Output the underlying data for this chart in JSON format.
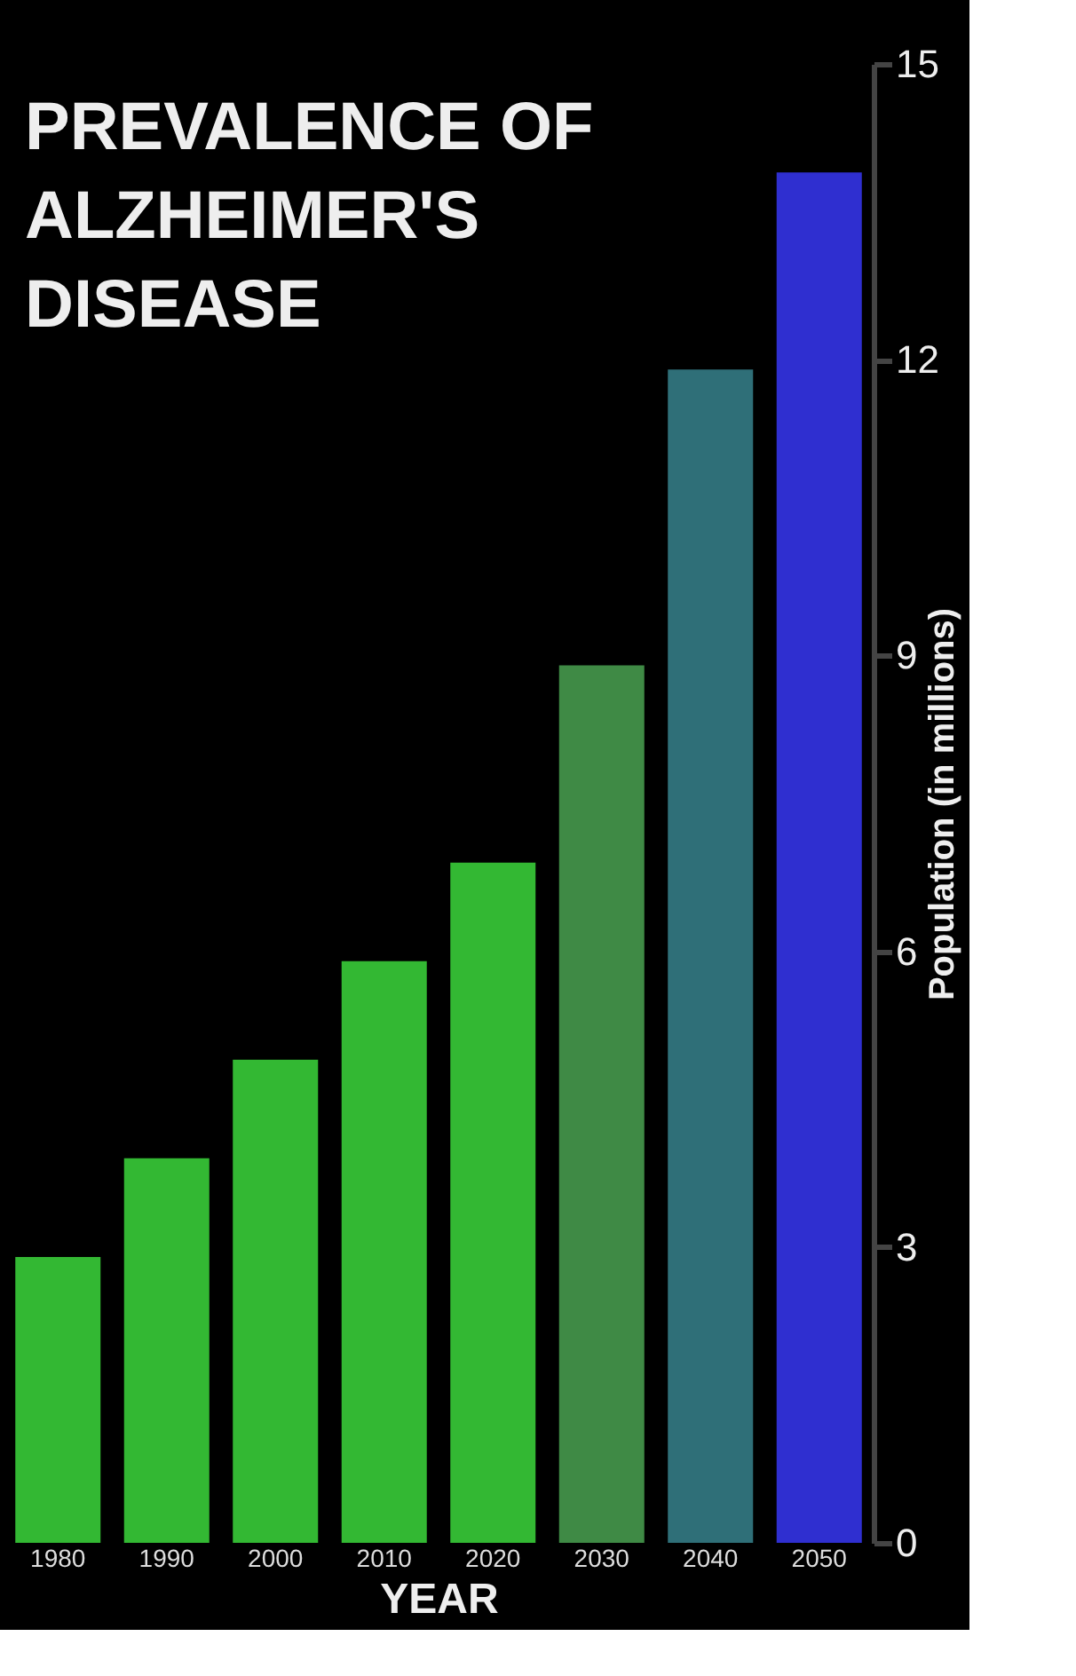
{
  "chart_data": {
    "type": "bar",
    "title": "PREVALENCE OF\nALZHEIMER'S\nDISEASE",
    "xlabel": "YEAR",
    "ylabel": "Population (in millions)",
    "categories": [
      "1980",
      "1990",
      "2000",
      "2010",
      "2020",
      "2030",
      "2040",
      "2050"
    ],
    "values": [
      2.9,
      3.9,
      4.9,
      5.9,
      6.9,
      8.9,
      11.9,
      13.9
    ],
    "colors": [
      "#33b833",
      "#33b833",
      "#33b833",
      "#33b833",
      "#33b833",
      "#3f8a45",
      "#2f6f78",
      "#2f2fd0"
    ],
    "ylim": [
      0,
      15
    ],
    "yticks": [
      0,
      3,
      6,
      9,
      12,
      15
    ],
    "grid": false,
    "legend": false
  }
}
